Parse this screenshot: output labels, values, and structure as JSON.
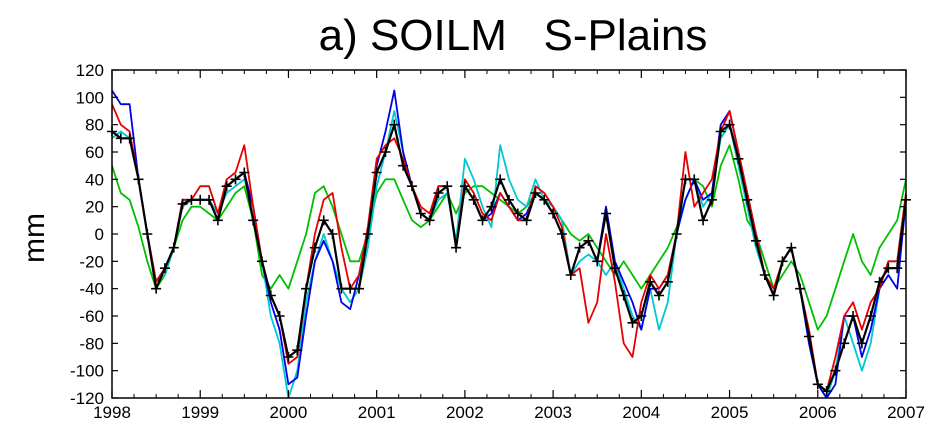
{
  "chart_data": {
    "type": "line",
    "title": "a) SOILM   S-Plains",
    "ylabel": "mm",
    "xlabel": "",
    "xlim": [
      1998,
      2007
    ],
    "ylim": [
      -120,
      120
    ],
    "xticks": [
      1998,
      1999,
      2000,
      2001,
      2002,
      2003,
      2004,
      2005,
      2006,
      2007
    ],
    "yticks": [
      -120,
      -100,
      -80,
      -60,
      -40,
      -20,
      0,
      20,
      40,
      60,
      80,
      100,
      120
    ],
    "grid": false,
    "legend": "none",
    "series": [
      {
        "color": "#00c000",
        "x": [
          1998.0,
          1998.1,
          1998.2,
          1998.3,
          1998.4,
          1998.5,
          1998.6,
          1998.7,
          1998.8,
          1998.9,
          1999.0,
          1999.1,
          1999.2,
          1999.3,
          1999.4,
          1999.5,
          1999.6,
          1999.7,
          1999.8,
          1999.9,
          2000.0,
          2000.1,
          2000.2,
          2000.3,
          2000.4,
          2000.5,
          2000.6,
          2000.7,
          2000.8,
          2000.9,
          2001.0,
          2001.1,
          2001.2,
          2001.3,
          2001.4,
          2001.5,
          2001.6,
          2001.7,
          2001.8,
          2001.9,
          2002.0,
          2002.1,
          2002.2,
          2002.3,
          2002.4,
          2002.5,
          2002.6,
          2002.7,
          2002.8,
          2002.9,
          2003.0,
          2003.1,
          2003.2,
          2003.3,
          2003.4,
          2003.5,
          2003.6,
          2003.7,
          2003.8,
          2003.9,
          2004.0,
          2004.1,
          2004.2,
          2004.3,
          2004.4,
          2004.5,
          2004.6,
          2004.7,
          2004.8,
          2004.9,
          2005.0,
          2005.1,
          2005.2,
          2005.3,
          2005.4,
          2005.5,
          2005.6,
          2005.7,
          2005.8,
          2005.9,
          2006.0,
          2006.1,
          2006.2,
          2006.3,
          2006.4,
          2006.5,
          2006.6,
          2006.7,
          2006.8,
          2006.9,
          2007.0
        ],
        "values": [
          50,
          30,
          25,
          5,
          -20,
          -40,
          -30,
          -10,
          10,
          20,
          20,
          15,
          10,
          20,
          30,
          35,
          10,
          -30,
          -40,
          -30,
          -40,
          -20,
          0,
          30,
          35,
          20,
          0,
          -20,
          -20,
          0,
          30,
          40,
          40,
          25,
          10,
          5,
          10,
          20,
          30,
          15,
          30,
          35,
          35,
          30,
          25,
          20,
          15,
          20,
          30,
          25,
          20,
          10,
          0,
          -5,
          0,
          -10,
          -20,
          -30,
          -20,
          -30,
          -40,
          -30,
          -20,
          -10,
          5,
          25,
          40,
          35,
          20,
          50,
          65,
          40,
          10,
          0,
          -20,
          -40,
          -30,
          -20,
          -30,
          -50,
          -70,
          -60,
          -40,
          -20,
          0,
          -20,
          -30,
          -10,
          0,
          10,
          40
        ]
      },
      {
        "color": "#00c8d0",
        "x": [
          1998.0,
          1998.1,
          1998.2,
          1998.3,
          1998.4,
          1998.5,
          1998.6,
          1998.7,
          1998.8,
          1998.9,
          1999.0,
          1999.1,
          1999.2,
          1999.3,
          1999.4,
          1999.5,
          1999.6,
          1999.7,
          1999.8,
          1999.9,
          2000.0,
          2000.1,
          2000.2,
          2000.3,
          2000.4,
          2000.5,
          2000.6,
          2000.7,
          2000.8,
          2000.9,
          2001.0,
          2001.1,
          2001.2,
          2001.3,
          2001.4,
          2001.5,
          2001.6,
          2001.7,
          2001.8,
          2001.9,
          2002.0,
          2002.1,
          2002.2,
          2002.3,
          2002.4,
          2002.5,
          2002.6,
          2002.7,
          2002.8,
          2002.9,
          2003.0,
          2003.1,
          2003.2,
          2003.3,
          2003.4,
          2003.5,
          2003.6,
          2003.7,
          2003.8,
          2003.9,
          2004.0,
          2004.1,
          2004.2,
          2004.3,
          2004.4,
          2004.5,
          2004.6,
          2004.7,
          2004.8,
          2004.9,
          2005.0,
          2005.1,
          2005.2,
          2005.3,
          2005.4,
          2005.5,
          2005.6,
          2005.7,
          2005.8,
          2005.9,
          2006.0,
          2006.1,
          2006.2,
          2006.3,
          2006.4,
          2006.5,
          2006.6,
          2006.7,
          2006.8,
          2006.9,
          2007.0
        ],
        "values": [
          70,
          75,
          70,
          40,
          0,
          -35,
          -30,
          -10,
          20,
          25,
          25,
          25,
          15,
          30,
          35,
          40,
          20,
          -20,
          -60,
          -80,
          -120,
          -100,
          -50,
          -20,
          0,
          -20,
          -40,
          -50,
          -40,
          -10,
          35,
          60,
          90,
          60,
          35,
          15,
          10,
          25,
          30,
          -5,
          55,
          40,
          20,
          5,
          65,
          40,
          25,
          20,
          40,
          25,
          20,
          10,
          -30,
          -20,
          -15,
          -20,
          -30,
          -20,
          -40,
          -60,
          -70,
          -40,
          -70,
          -50,
          0,
          25,
          40,
          20,
          30,
          70,
          80,
          50,
          20,
          -10,
          -30,
          -40,
          -20,
          -10,
          -40,
          -80,
          -110,
          -120,
          -100,
          -60,
          -80,
          -100,
          -80,
          -40,
          -20,
          -20,
          30
        ]
      },
      {
        "color": "#0000ee",
        "x": [
          1998.0,
          1998.1,
          1998.2,
          1998.3,
          1998.4,
          1998.5,
          1998.6,
          1998.7,
          1998.8,
          1998.9,
          1999.0,
          1999.1,
          1999.2,
          1999.3,
          1999.4,
          1999.5,
          1999.6,
          1999.7,
          1999.8,
          1999.9,
          2000.0,
          2000.1,
          2000.2,
          2000.3,
          2000.4,
          2000.5,
          2000.6,
          2000.7,
          2000.8,
          2000.9,
          2001.0,
          2001.1,
          2001.2,
          2001.3,
          2001.4,
          2001.5,
          2001.6,
          2001.7,
          2001.8,
          2001.9,
          2002.0,
          2002.1,
          2002.2,
          2002.3,
          2002.4,
          2002.5,
          2002.6,
          2002.7,
          2002.8,
          2002.9,
          2003.0,
          2003.1,
          2003.2,
          2003.3,
          2003.4,
          2003.5,
          2003.6,
          2003.7,
          2003.8,
          2003.9,
          2004.0,
          2004.1,
          2004.2,
          2004.3,
          2004.4,
          2004.5,
          2004.6,
          2004.7,
          2004.8,
          2004.9,
          2005.0,
          2005.1,
          2005.2,
          2005.3,
          2005.4,
          2005.5,
          2005.6,
          2005.7,
          2005.8,
          2005.9,
          2006.0,
          2006.1,
          2006.2,
          2006.3,
          2006.4,
          2006.5,
          2006.6,
          2006.7,
          2006.8,
          2006.9,
          2007.0
        ],
        "values": [
          105,
          95,
          95,
          40,
          0,
          -35,
          -25,
          -10,
          25,
          25,
          25,
          25,
          10,
          35,
          40,
          45,
          20,
          -20,
          -50,
          -70,
          -110,
          -105,
          -60,
          -20,
          -5,
          -20,
          -50,
          -55,
          -30,
          0,
          50,
          75,
          105,
          60,
          35,
          15,
          10,
          35,
          35,
          -10,
          35,
          25,
          10,
          15,
          30,
          20,
          10,
          15,
          30,
          25,
          15,
          0,
          -30,
          -10,
          -5,
          -20,
          20,
          -20,
          -35,
          -50,
          -70,
          -40,
          -40,
          -30,
          0,
          25,
          40,
          25,
          30,
          80,
          90,
          60,
          30,
          0,
          -30,
          -45,
          -20,
          -10,
          -40,
          -80,
          -110,
          -120,
          -110,
          -60,
          -60,
          -90,
          -70,
          -40,
          -30,
          -40,
          25
        ]
      },
      {
        "color": "#e80000",
        "x": [
          1998.0,
          1998.1,
          1998.2,
          1998.3,
          1998.4,
          1998.5,
          1998.6,
          1998.7,
          1998.8,
          1998.9,
          1999.0,
          1999.1,
          1999.2,
          1999.3,
          1999.4,
          1999.5,
          1999.6,
          1999.7,
          1999.8,
          1999.9,
          2000.0,
          2000.1,
          2000.2,
          2000.3,
          2000.4,
          2000.5,
          2000.6,
          2000.7,
          2000.8,
          2000.9,
          2001.0,
          2001.1,
          2001.2,
          2001.3,
          2001.4,
          2001.5,
          2001.6,
          2001.7,
          2001.8,
          2001.9,
          2002.0,
          2002.1,
          2002.2,
          2002.3,
          2002.4,
          2002.5,
          2002.6,
          2002.7,
          2002.8,
          2002.9,
          2003.0,
          2003.1,
          2003.2,
          2003.3,
          2003.4,
          2003.5,
          2003.6,
          2003.7,
          2003.8,
          2003.9,
          2004.0,
          2004.1,
          2004.2,
          2004.3,
          2004.4,
          2004.5,
          2004.6,
          2004.7,
          2004.8,
          2004.9,
          2005.0,
          2005.1,
          2005.2,
          2005.3,
          2005.4,
          2005.5,
          2005.6,
          2005.7,
          2005.8,
          2005.9,
          2006.0,
          2006.1,
          2006.2,
          2006.3,
          2006.4,
          2006.5,
          2006.6,
          2006.7,
          2006.8,
          2006.9,
          2007.0
        ],
        "values": [
          95,
          80,
          75,
          40,
          0,
          -35,
          -25,
          -10,
          25,
          25,
          35,
          35,
          15,
          40,
          45,
          65,
          20,
          -20,
          -45,
          -60,
          -95,
          -90,
          -40,
          0,
          25,
          30,
          -10,
          -40,
          -30,
          5,
          55,
          65,
          70,
          55,
          35,
          20,
          15,
          35,
          35,
          -10,
          40,
          30,
          15,
          10,
          30,
          20,
          10,
          10,
          35,
          30,
          20,
          5,
          -30,
          -25,
          -65,
          -50,
          0,
          -35,
          -80,
          -90,
          -50,
          -30,
          -40,
          -30,
          0,
          60,
          20,
          30,
          40,
          75,
          90,
          60,
          30,
          0,
          -30,
          -40,
          -20,
          -10,
          -40,
          -70,
          -110,
          -115,
          -90,
          -60,
          -50,
          -70,
          -50,
          -40,
          -20,
          -20,
          30
        ]
      },
      {
        "color": "#000000",
        "marker": "plus",
        "x": [
          1998.0,
          1998.1,
          1998.2,
          1998.3,
          1998.4,
          1998.5,
          1998.6,
          1998.7,
          1998.8,
          1998.9,
          1999.0,
          1999.1,
          1999.2,
          1999.3,
          1999.4,
          1999.5,
          1999.6,
          1999.7,
          1999.8,
          1999.9,
          2000.0,
          2000.1,
          2000.2,
          2000.3,
          2000.4,
          2000.5,
          2000.6,
          2000.7,
          2000.8,
          2000.9,
          2001.0,
          2001.1,
          2001.2,
          2001.3,
          2001.4,
          2001.5,
          2001.6,
          2001.7,
          2001.8,
          2001.9,
          2002.0,
          2002.1,
          2002.2,
          2002.3,
          2002.4,
          2002.5,
          2002.6,
          2002.7,
          2002.8,
          2002.9,
          2003.0,
          2003.1,
          2003.2,
          2003.3,
          2003.4,
          2003.5,
          2003.6,
          2003.7,
          2003.8,
          2003.9,
          2004.0,
          2004.1,
          2004.2,
          2004.3,
          2004.4,
          2004.5,
          2004.6,
          2004.7,
          2004.8,
          2004.9,
          2005.0,
          2005.1,
          2005.2,
          2005.3,
          2005.4,
          2005.5,
          2005.6,
          2005.7,
          2005.8,
          2005.9,
          2006.0,
          2006.1,
          2006.2,
          2006.3,
          2006.4,
          2006.5,
          2006.6,
          2006.7,
          2006.8,
          2006.9,
          2007.0
        ],
        "values": [
          75,
          70,
          70,
          40,
          0,
          -40,
          -25,
          -10,
          22,
          25,
          25,
          25,
          10,
          35,
          40,
          45,
          10,
          -20,
          -45,
          -60,
          -90,
          -85,
          -40,
          -10,
          10,
          0,
          -40,
          -40,
          -40,
          0,
          45,
          60,
          80,
          50,
          35,
          15,
          10,
          30,
          35,
          -10,
          35,
          25,
          10,
          20,
          40,
          25,
          15,
          10,
          30,
          25,
          15,
          0,
          -30,
          -10,
          -5,
          -20,
          15,
          -25,
          -45,
          -65,
          -60,
          -35,
          -45,
          -35,
          0,
          40,
          40,
          10,
          25,
          75,
          80,
          55,
          25,
          -5,
          -30,
          -45,
          -20,
          -10,
          -40,
          -75,
          -110,
          -115,
          -100,
          -80,
          -60,
          -80,
          -60,
          -35,
          -25,
          -25,
          25
        ]
      }
    ]
  }
}
